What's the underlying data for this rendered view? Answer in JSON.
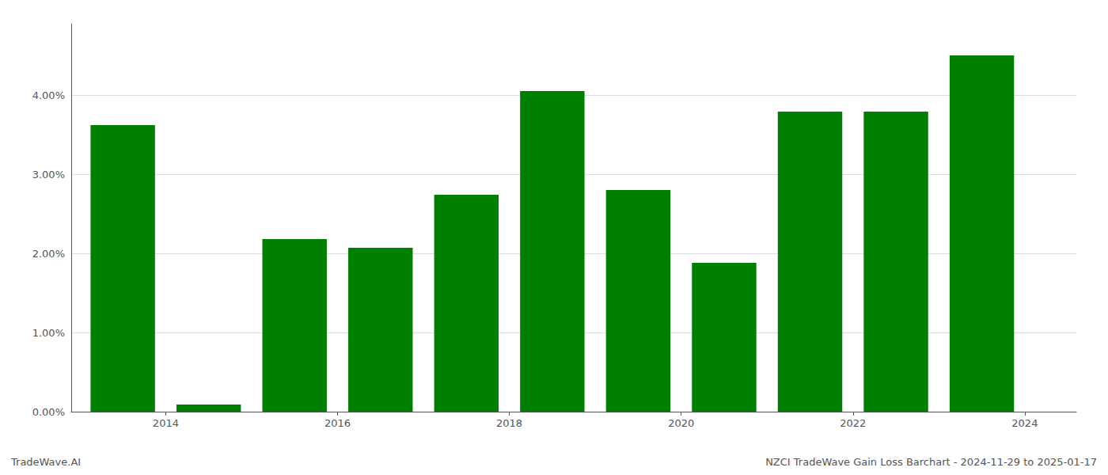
{
  "chart_data": {
    "type": "bar",
    "x": [
      2014,
      2015,
      2016,
      2017,
      2018,
      2019,
      2020,
      2021,
      2022,
      2023,
      2024
    ],
    "values": [
      3.62,
      0.09,
      2.18,
      2.07,
      2.74,
      4.05,
      2.8,
      1.88,
      3.79,
      3.79,
      4.5
    ],
    "color": "#008000",
    "xlim": [
      2013.4,
      2025.1
    ],
    "xticks": [
      {
        "value": 2014.5,
        "label": "2014"
      },
      {
        "value": 2016.5,
        "label": "2016"
      },
      {
        "value": 2018.5,
        "label": "2018"
      },
      {
        "value": 2020.5,
        "label": "2020"
      },
      {
        "value": 2022.5,
        "label": "2022"
      },
      {
        "value": 2024.5,
        "label": "2024"
      }
    ],
    "ylim": [
      0,
      4.9
    ],
    "yticks": [
      {
        "value": 0.0,
        "label": "0.00%"
      },
      {
        "value": 1.0,
        "label": "1.00%"
      },
      {
        "value": 2.0,
        "label": "2.00%"
      },
      {
        "value": 3.0,
        "label": "3.00%"
      },
      {
        "value": 4.0,
        "label": "4.00%"
      }
    ],
    "grid": true,
    "annotations": [
      "TradeWave.AI",
      "NZCI TradeWave Gain Loss Barchart - 2024-11-29 to 2025-01-17"
    ]
  }
}
